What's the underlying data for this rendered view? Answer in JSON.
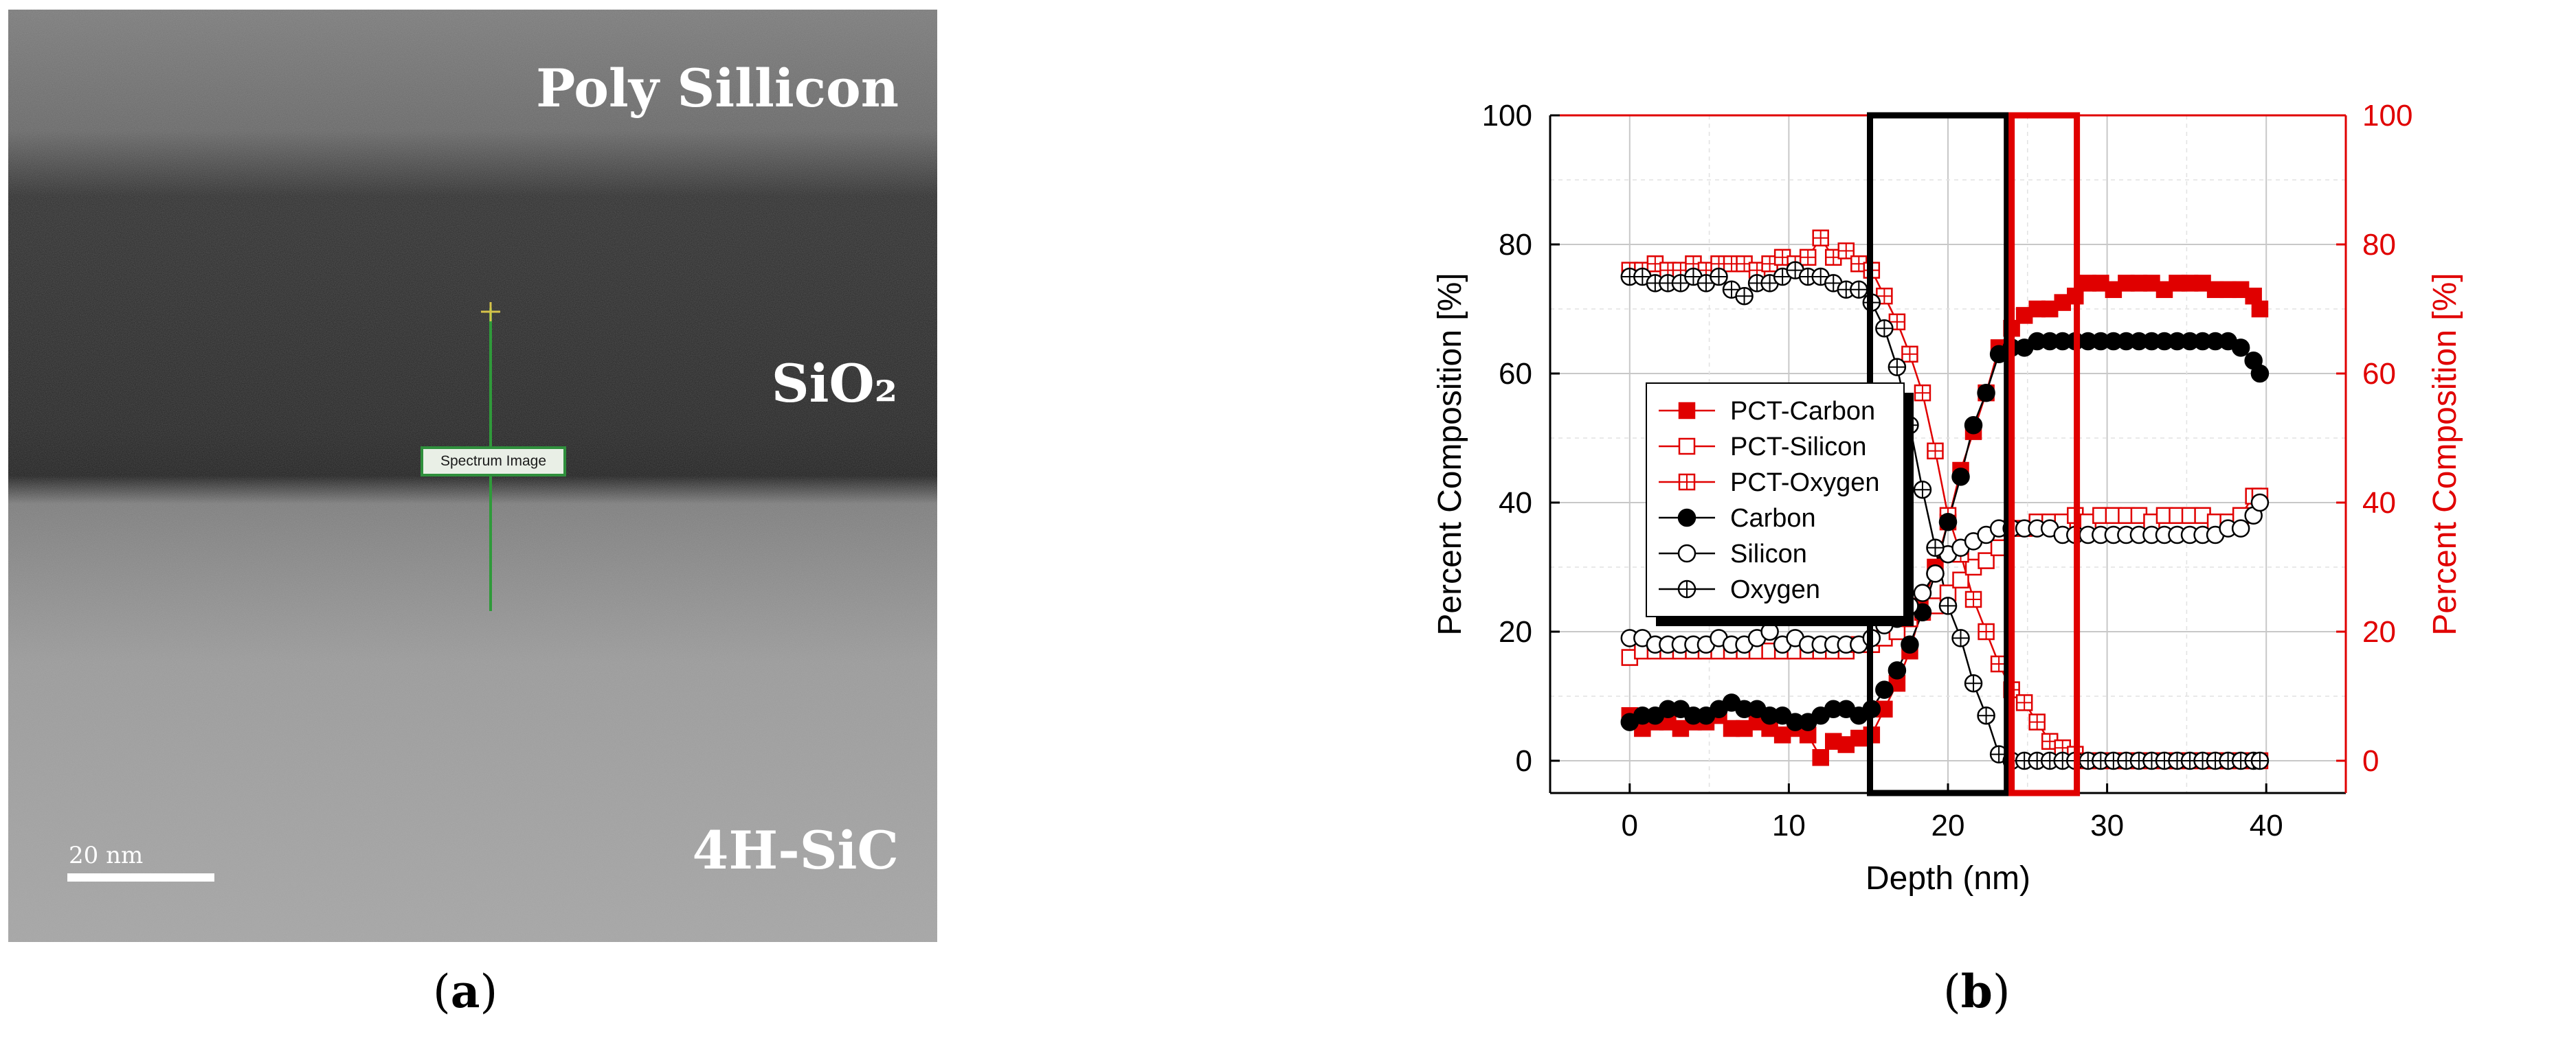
{
  "panel_a": {
    "labels": {
      "poly": "Poly Sillicon",
      "sio2": "SiO₂",
      "sic": "4H-SiC"
    },
    "scale_bar": "20 nm",
    "spectrum_label": "Spectrum Image",
    "caption_letter": "a"
  },
  "panel_b": {
    "caption_letter": "b"
  },
  "colors": {
    "black": "#000000",
    "red": "#e00000",
    "grid": "#c8c8c8"
  },
  "chart_data": {
    "type": "line",
    "xlabel": "Depth (nm)",
    "ylabel_left": "Percent Composition [%]",
    "ylabel_right": "Percent Composition [%]",
    "xlim": [
      -5,
      45
    ],
    "ylim": [
      -5,
      100
    ],
    "xticks": [
      0,
      10,
      20,
      30,
      40
    ],
    "yticks": [
      0,
      20,
      40,
      60,
      80,
      100
    ],
    "grid": true,
    "legend_position": "center-left",
    "highlight_boxes": [
      {
        "color": "black",
        "x": [
          15.1,
          23.7
        ],
        "y": [
          -5,
          100
        ]
      },
      {
        "color": "red",
        "x": [
          24.0,
          28.1
        ],
        "y": [
          -5,
          100
        ]
      }
    ],
    "x": [
      0,
      0.8,
      1.6,
      2.4,
      3.2,
      4.0,
      4.8,
      5.6,
      6.4,
      7.2,
      8.0,
      8.8,
      9.6,
      10.4,
      11.2,
      12.0,
      12.8,
      13.6,
      14.4,
      15.2,
      16.0,
      16.8,
      17.6,
      18.4,
      19.2,
      20.0,
      20.8,
      21.6,
      22.4,
      23.2,
      24.0,
      24.8,
      25.6,
      26.4,
      27.2,
      28.0,
      28.8,
      29.6,
      30.4,
      31.2,
      32.0,
      32.8,
      33.6,
      34.4,
      35.2,
      36.0,
      36.8,
      37.6,
      38.4,
      39.2,
      39.6
    ],
    "series": [
      {
        "name": "PCT-Carbon",
        "color": "red",
        "marker": "filled-square",
        "values": [
          7,
          5,
          6,
          6,
          5,
          6,
          6,
          7,
          5,
          5,
          6,
          5,
          4,
          5,
          4,
          0.5,
          3,
          2.5,
          3.5,
          4,
          8,
          12,
          17,
          24,
          30,
          37,
          45,
          51,
          57,
          64,
          67,
          69,
          70,
          70,
          71,
          72,
          74,
          74,
          73,
          74,
          74,
          74,
          73,
          74,
          74,
          74,
          73,
          73,
          73,
          72,
          70
        ]
      },
      {
        "name": "PCT-Silicon",
        "color": "red",
        "marker": "open-square",
        "values": [
          16,
          17,
          17,
          17,
          17,
          17,
          17,
          17,
          17,
          17,
          17,
          17,
          17,
          17,
          17,
          17,
          17,
          17,
          18,
          18,
          19,
          20,
          22,
          23,
          24,
          26,
          28,
          30,
          31,
          33,
          36,
          36,
          37,
          37,
          37,
          38,
          37,
          38,
          38,
          38,
          38,
          37,
          38,
          38,
          38,
          38,
          37,
          37,
          38,
          41,
          41
        ]
      },
      {
        "name": "PCT-Oxygen",
        "color": "red",
        "marker": "crossed-square",
        "values": [
          76,
          76,
          77,
          76,
          76,
          77,
          76,
          77,
          77,
          77,
          76,
          77,
          78,
          77,
          78,
          81,
          78,
          79,
          77,
          76,
          72,
          68,
          63,
          57,
          48,
          38,
          32,
          25,
          20,
          15,
          11,
          9,
          6,
          3,
          2,
          1,
          0,
          0,
          0,
          0,
          0,
          0,
          0,
          0,
          0,
          0,
          0,
          0,
          0,
          0,
          0
        ]
      },
      {
        "name": "Carbon",
        "color": "black",
        "marker": "filled-circle",
        "values": [
          6,
          7,
          7,
          8,
          8,
          7,
          7,
          8,
          9,
          8,
          8,
          7,
          7,
          6,
          6,
          7,
          8,
          8,
          7,
          8,
          11,
          14,
          18,
          23,
          29,
          37,
          44,
          52,
          57,
          63,
          64,
          64,
          65,
          65,
          65,
          65,
          65,
          65,
          65,
          65,
          65,
          65,
          65,
          65,
          65,
          65,
          65,
          65,
          64,
          62,
          60
        ]
      },
      {
        "name": "Silicon",
        "color": "black",
        "marker": "open-circle",
        "values": [
          19,
          19,
          18,
          18,
          18,
          18,
          18,
          19,
          18,
          18,
          19,
          20,
          18,
          19,
          18,
          18,
          18,
          18,
          18,
          19,
          21,
          22,
          24,
          26,
          29,
          32,
          33,
          34,
          35,
          36,
          36,
          36,
          36,
          36,
          35,
          35,
          35,
          35,
          35,
          35,
          35,
          35,
          35,
          35,
          35,
          35,
          35,
          36,
          36,
          38,
          40
        ]
      },
      {
        "name": "Oxygen",
        "color": "black",
        "marker": "crossed-circle",
        "values": [
          75,
          75,
          74,
          74,
          74,
          75,
          74,
          75,
          73,
          72,
          74,
          74,
          75,
          76,
          75,
          75,
          74,
          73,
          73,
          71,
          67,
          61,
          52,
          42,
          33,
          24,
          19,
          12,
          7,
          1,
          0,
          0,
          0,
          0,
          0,
          0,
          0,
          0,
          0,
          0,
          0,
          0,
          0,
          0,
          0,
          0,
          0,
          0,
          0,
          0,
          0
        ]
      }
    ]
  }
}
